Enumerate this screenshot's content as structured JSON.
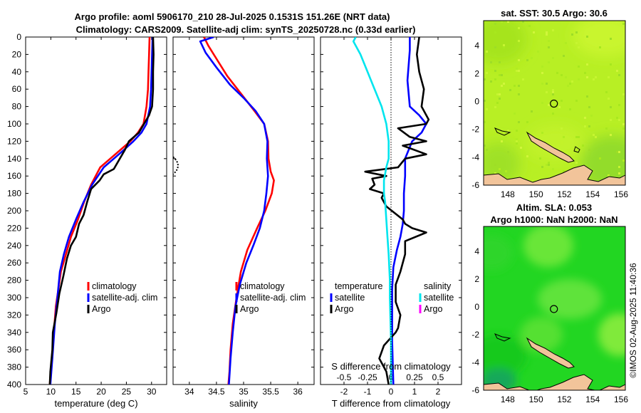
{
  "figure": {
    "title_line1": "Argo profile: aoml 5906170_210 28-Jul-2025 0.1531S 151.26E (NRT data)",
    "title_line2": "Climatology: CARS2009. Satellite-adj clim: synTS_20250728.nc (0.33d earlier)",
    "watermark": "©IMOS 02-Aug-2025 11:40:36"
  },
  "colors": {
    "climatology": "#ff0000",
    "satellite": "#0000ff",
    "argo": "#000000",
    "salinity_satellite": "#00e5ee",
    "salinity_argo": "#ff00ff",
    "sst_map": "#b9f21f",
    "sla_map": "#1fd41f",
    "land": "#f2c49a"
  },
  "chart_data": [
    {
      "id": "temperature",
      "type": "line",
      "xlabel": "temperature (deg C)",
      "ylabel": "",
      "xlim": [
        5,
        33
      ],
      "ylim": [
        400,
        0
      ],
      "xticks": [
        5,
        10,
        15,
        20,
        25,
        30
      ],
      "yticks": [
        0,
        20,
        40,
        60,
        80,
        100,
        120,
        140,
        160,
        180,
        200,
        220,
        240,
        260,
        280,
        300,
        320,
        340,
        360,
        380,
        400
      ],
      "series": [
        {
          "name": "climatology",
          "color": "#ff0000",
          "x": [
            29.6,
            29.5,
            29.4,
            29.3,
            29.0,
            28.4,
            27.3,
            25.8,
            23.8,
            21.8,
            19.8,
            18.0,
            16.6,
            15.4,
            14.0,
            13.0,
            12.0,
            11.5,
            11.0,
            10.6,
            10.2,
            9.8
          ],
          "y": [
            0,
            20,
            40,
            60,
            80,
            100,
            110,
            120,
            130,
            140,
            150,
            170,
            190,
            210,
            230,
            250,
            270,
            290,
            310,
            340,
            370,
            400
          ]
        },
        {
          "name": "satellite-adj. clim",
          "color": "#0000ff",
          "x": [
            30.2,
            30.1,
            30.0,
            29.9,
            29.7,
            29.0,
            28.0,
            26.4,
            24.5,
            22.5,
            20.5,
            18.2,
            16.5,
            15.0,
            13.6,
            12.6,
            11.8,
            11.3,
            10.8,
            10.3,
            9.9
          ],
          "y": [
            0,
            20,
            40,
            60,
            80,
            100,
            110,
            120,
            130,
            140,
            150,
            170,
            190,
            210,
            230,
            250,
            270,
            300,
            330,
            370,
            400
          ]
        },
        {
          "name": "Argo",
          "color": "#000000",
          "x": [
            30.3,
            30.4,
            30.3,
            30.3,
            30.1,
            29.5,
            28.5,
            27.5,
            25.5,
            24.7,
            23.7,
            22.5,
            20.5,
            19.7,
            18.0,
            17.2,
            16.5,
            15.6,
            15.0,
            14.0,
            13.2,
            12.5,
            11.7,
            11.1,
            10.4,
            10.3,
            9.9,
            9.8
          ],
          "y": [
            0,
            20,
            40,
            60,
            80,
            90,
            100,
            110,
            120,
            130,
            140,
            152,
            158,
            165,
            175,
            190,
            205,
            215,
            230,
            240,
            255,
            275,
            295,
            318,
            340,
            360,
            385,
            400
          ]
        }
      ],
      "legend": [
        "climatology",
        "satellite-adj. clim",
        "Argo"
      ],
      "legend_position": "lower-right"
    },
    {
      "id": "salinity",
      "type": "line",
      "xlabel": "salinity",
      "ylabel": "",
      "xlim": [
        33.7,
        36.3
      ],
      "ylim": [
        400,
        0
      ],
      "xticks": [
        34,
        34.5,
        35,
        35.5,
        36
      ],
      "xticklabels": [
        "34",
        "34.5",
        "35",
        "35.5",
        "36"
      ],
      "series": [
        {
          "name": "climatology",
          "color": "#ff0000",
          "x": [
            34.27,
            34.35,
            34.5,
            34.7,
            34.95,
            35.2,
            35.38,
            35.45,
            35.46,
            35.5,
            35.56,
            35.52,
            35.4,
            35.25,
            35.07,
            34.95,
            34.87,
            34.8,
            34.76,
            34.74,
            34.72
          ],
          "y": [
            0,
            10,
            25,
            45,
            65,
            85,
            100,
            120,
            140,
            155,
            165,
            180,
            200,
            220,
            245,
            270,
            300,
            330,
            360,
            385,
            400
          ]
        },
        {
          "name": "satellite-adj. clim",
          "color": "#0000ff",
          "x": [
            34.45,
            34.2,
            34.3,
            34.5,
            34.75,
            35.0,
            35.22,
            35.38,
            35.44,
            35.43,
            35.45,
            35.42,
            35.38,
            35.3,
            35.18,
            35.05,
            34.93,
            34.85,
            34.8,
            34.76,
            34.74,
            34.73
          ],
          "y": [
            0,
            5,
            18,
            35,
            55,
            70,
            85,
            100,
            120,
            140,
            160,
            180,
            200,
            220,
            240,
            260,
            285,
            310,
            340,
            370,
            390,
            400
          ]
        }
      ],
      "dotted_marker": {
        "x": 33.75,
        "y": [
          138,
          158
        ]
      },
      "legend": [
        "climatology",
        "satellite-adj. clim",
        "Argo"
      ],
      "legend_position": "lower-left"
    },
    {
      "id": "difference",
      "type": "line",
      "xlabel": "T difference from climatology",
      "x2label": "S difference from climatology",
      "xlim": [
        -3,
        3
      ],
      "ylim": [
        400,
        0
      ],
      "xticks": [
        -2,
        -1,
        0,
        1,
        2
      ],
      "x2ticks": [
        -0.5,
        -0.25,
        0,
        0.25,
        0.5
      ],
      "x2ticklabels": [
        "-0.5",
        "-0.25",
        "0",
        "0.25",
        "0.5"
      ],
      "zero_line": true,
      "series": [
        {
          "name": "temperature satellite",
          "color": "#0000ff",
          "x": [
            0.8,
            0.8,
            0.7,
            0.8,
            1.2,
            1.5,
            1.3,
            0.9,
            0.6,
            0.6,
            0.55,
            0.55,
            0.5,
            0.4,
            0.25,
            0.1,
            0.05,
            0.05,
            0.05,
            0.08,
            0.1
          ],
          "y": [
            0,
            15,
            50,
            80,
            90,
            100,
            110,
            120,
            140,
            160,
            180,
            200,
            215,
            230,
            245,
            265,
            290,
            320,
            350,
            380,
            400
          ]
        },
        {
          "name": "temperature Argo",
          "color": "#000000",
          "x": [
            1.2,
            1.1,
            1.2,
            1.4,
            1.3,
            1.6,
            1.5,
            0.3,
            0.8,
            1.5,
            0.5,
            1.5,
            0.6,
            0.3,
            -1.1,
            -0.2,
            -0.8,
            -0.7,
            -0.9,
            -0.3,
            -0.4,
            -0.2,
            0.5,
            0.6,
            0.9,
            1.5,
            0.6,
            0.6,
            0.4,
            0.2,
            0.2,
            0.4,
            0.3,
            0.2,
            -0.3,
            -0.5,
            -0.2,
            -0.1
          ],
          "y": [
            0,
            20,
            40,
            60,
            80,
            95,
            100,
            105,
            115,
            120,
            125,
            135,
            140,
            150,
            155,
            160,
            163,
            170,
            175,
            180,
            185,
            195,
            210,
            215,
            220,
            225,
            235,
            250,
            270,
            285,
            305,
            320,
            335,
            340,
            355,
            370,
            385,
            400
          ]
        },
        {
          "name": "salinity satellite",
          "color": "#00e5ee",
          "x": [
            -1.5,
            -1.6,
            -1.3,
            -1.0,
            -0.7,
            -0.4,
            -0.2,
            -0.1,
            -0.1,
            -0.2,
            -0.3,
            -0.3,
            -0.25,
            -0.2,
            -0.15,
            -0.1,
            -0.05,
            -0.05,
            -0.03,
            0.0,
            0.0,
            0.0
          ],
          "y": [
            0,
            5,
            20,
            40,
            60,
            80,
            100,
            120,
            140,
            150,
            165,
            180,
            190,
            210,
            230,
            250,
            280,
            300,
            320,
            350,
            380,
            400
          ]
        }
      ],
      "legend_left": [
        "temperature",
        "satellite",
        "Argo"
      ],
      "legend_right": [
        "salinity",
        "satellite",
        "Argo"
      ],
      "legend_position": "lower"
    },
    {
      "id": "sst-map",
      "type": "heatmap",
      "title": "sat. SST: 30.5 Argo: 30.6",
      "xticks": [
        148,
        150,
        152,
        154,
        156
      ],
      "yticks": [
        4,
        2,
        0,
        -2,
        -4,
        -6
      ],
      "xlim": [
        146.3,
        156.3
      ],
      "ylim": [
        -6,
        5.8
      ],
      "argo_position": [
        151.26,
        -0.15
      ]
    },
    {
      "id": "sla-map",
      "type": "heatmap",
      "title": "Altim. SLA: 0.053",
      "subtitle": "Argo h1000: NaN h2000: NaN",
      "xticks": [
        148,
        150,
        152,
        154,
        156
      ],
      "yticks": [
        4,
        2,
        0,
        -2,
        -4,
        -6
      ],
      "xlim": [
        146.3,
        156.3
      ],
      "ylim": [
        -6,
        5.8
      ],
      "argo_position": [
        151.26,
        -0.15
      ]
    }
  ]
}
